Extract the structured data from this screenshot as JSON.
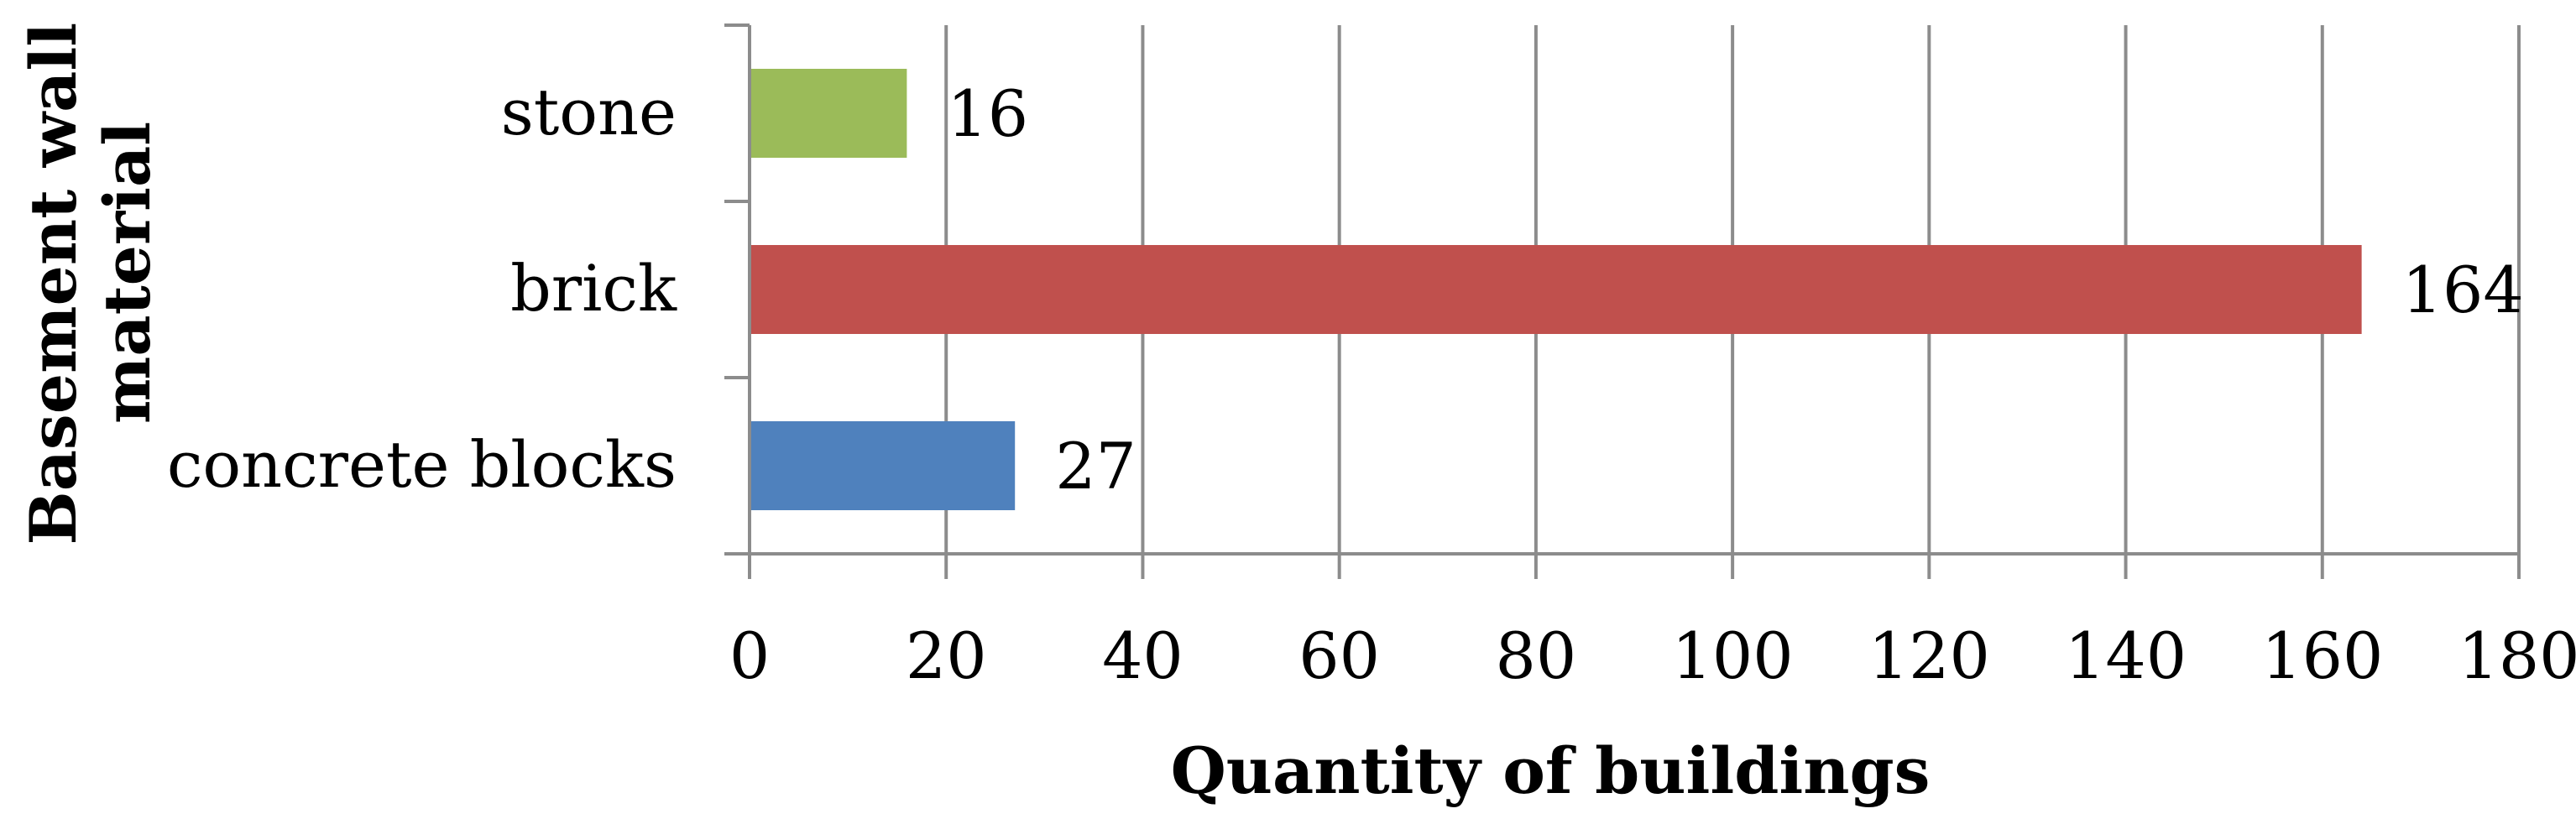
{
  "chart_data": {
    "type": "bar",
    "orientation": "horizontal",
    "categories": [
      "stone",
      "brick",
      "concrete blocks"
    ],
    "values": [
      16,
      164,
      27
    ],
    "data_labels": [
      "16",
      "164",
      "27"
    ],
    "bar_colors": [
      "#9bbb59",
      "#c0504d",
      "#4f81bd"
    ],
    "xlabel": "Quantity of buildings",
    "ylabel_lines": [
      "Basement wall",
      "material"
    ],
    "xlim": [
      0,
      180
    ],
    "xticks": [
      0,
      20,
      40,
      60,
      80,
      100,
      120,
      140,
      160,
      180
    ],
    "xtick_labels": [
      "0",
      "20",
      "40",
      "60",
      "80",
      "100",
      "120",
      "140",
      "160",
      "180"
    ],
    "grid": "vertical",
    "legend": "none"
  }
}
